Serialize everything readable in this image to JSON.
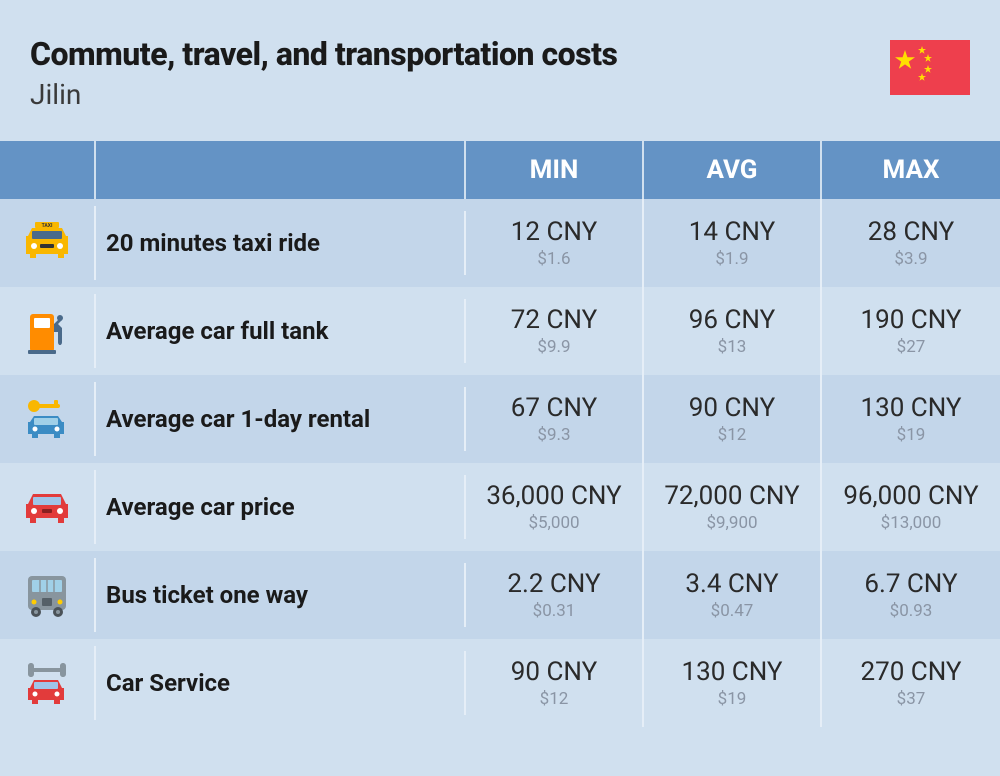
{
  "header": {
    "title": "Commute, travel, and transportation costs",
    "subtitle": "Jilin",
    "flag_bg": "#ee3f4d",
    "flag_star": "#ffde00"
  },
  "table": {
    "type": "table",
    "header_bg": "#6493c5",
    "header_text_color": "#ffffff",
    "row_alt_colors": [
      "#c3d6ea",
      "#d0e0ef"
    ],
    "columns": [
      "",
      "",
      "MIN",
      "AVG",
      "MAX"
    ],
    "rows": [
      {
        "icon": "taxi",
        "label": "20 minutes taxi ride",
        "min": {
          "primary": "12 CNY",
          "secondary": "$1.6"
        },
        "avg": {
          "primary": "14 CNY",
          "secondary": "$1.9"
        },
        "max": {
          "primary": "28 CNY",
          "secondary": "$3.9"
        }
      },
      {
        "icon": "fuel",
        "label": "Average car full tank",
        "min": {
          "primary": "72 CNY",
          "secondary": "$9.9"
        },
        "avg": {
          "primary": "96 CNY",
          "secondary": "$13"
        },
        "max": {
          "primary": "190 CNY",
          "secondary": "$27"
        }
      },
      {
        "icon": "rental",
        "label": "Average car 1-day rental",
        "min": {
          "primary": "67 CNY",
          "secondary": "$9.3"
        },
        "avg": {
          "primary": "90 CNY",
          "secondary": "$12"
        },
        "max": {
          "primary": "130 CNY",
          "secondary": "$19"
        }
      },
      {
        "icon": "car-price",
        "label": "Average car price",
        "min": {
          "primary": "36,000 CNY",
          "secondary": "$5,000"
        },
        "avg": {
          "primary": "72,000 CNY",
          "secondary": "$9,900"
        },
        "max": {
          "primary": "96,000 CNY",
          "secondary": "$13,000"
        }
      },
      {
        "icon": "bus",
        "label": "Bus ticket one way",
        "min": {
          "primary": "2.2 CNY",
          "secondary": "$0.31"
        },
        "avg": {
          "primary": "3.4 CNY",
          "secondary": "$0.47"
        },
        "max": {
          "primary": "6.7 CNY",
          "secondary": "$0.93"
        }
      },
      {
        "icon": "service",
        "label": "Car Service",
        "min": {
          "primary": "90 CNY",
          "secondary": "$12"
        },
        "avg": {
          "primary": "130 CNY",
          "secondary": "$19"
        },
        "max": {
          "primary": "270 CNY",
          "secondary": "$37"
        }
      }
    ]
  }
}
